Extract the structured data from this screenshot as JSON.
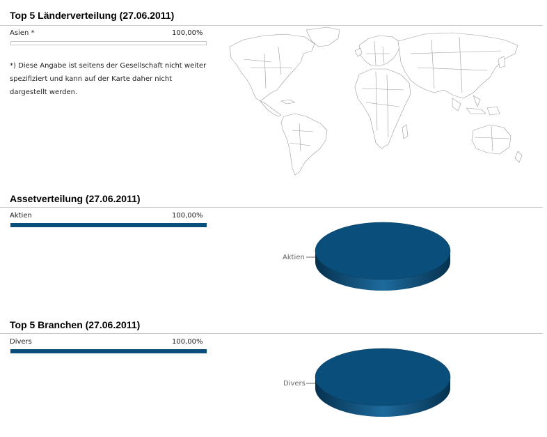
{
  "countries": {
    "title": "Top 5 Länderverteilung (27.06.2011)",
    "rows": [
      {
        "label": "Asien *",
        "value_text": "100,00%",
        "fraction": 0.0
      }
    ],
    "footnote": "*) Diese Angabe ist seitens der Gesellschaft nicht weiter spezifiziert und kann auf der Karte daher nicht dargestellt werden."
  },
  "assets": {
    "title": "Assetverteilung (27.06.2011)",
    "rows": [
      {
        "label": "Aktien",
        "value_text": "100,00%",
        "fraction": 1.0
      }
    ]
  },
  "sectors": {
    "title": "Top 5 Branchen (27.06.2011)",
    "rows": [
      {
        "label": "Divers",
        "value_text": "100,00%",
        "fraction": 1.0
      }
    ]
  },
  "colors": {
    "accent": "#0a4f7c",
    "accent_dark": "#063a5c",
    "rule": "#c8c8c8"
  },
  "chart_data": [
    {
      "type": "pie",
      "title": "Assetverteilung (27.06.2011)",
      "categories": [
        "Aktien"
      ],
      "values": [
        100.0
      ]
    },
    {
      "type": "pie",
      "title": "Top 5 Branchen (27.06.2011)",
      "categories": [
        "Divers"
      ],
      "values": [
        100.0
      ]
    }
  ]
}
